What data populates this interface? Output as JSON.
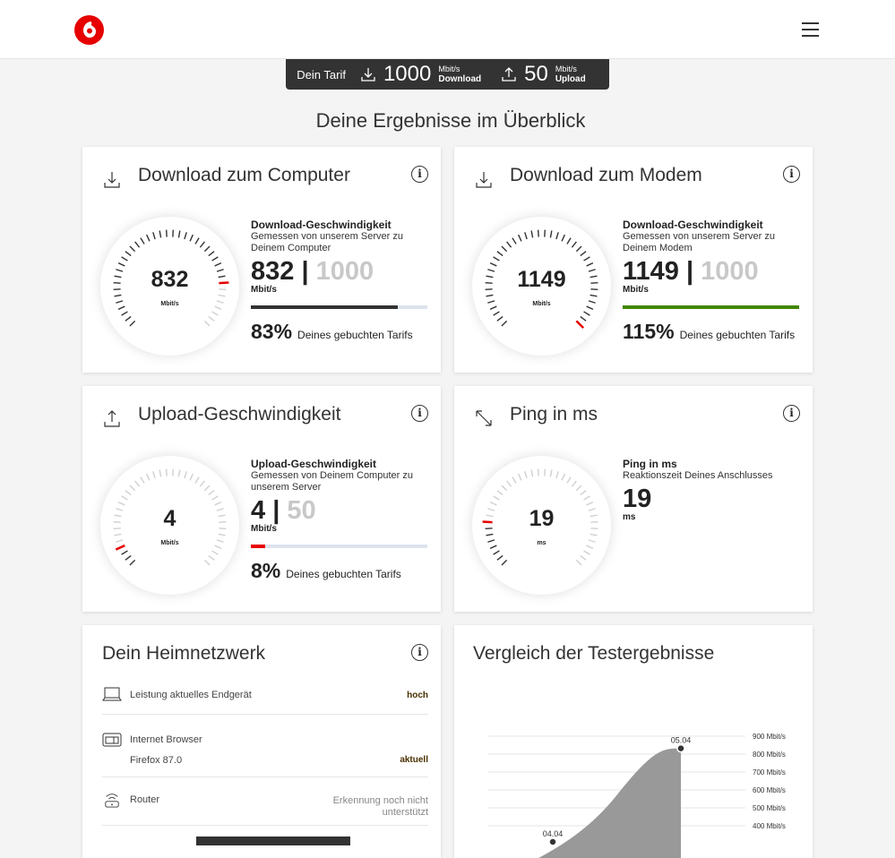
{
  "header": {
    "logo": "Vodafone",
    "menu_icon": "hamburger-icon"
  },
  "tarif": {
    "label": "Dein Tarif",
    "download_value": "1000",
    "download_unit": "Mbit/s",
    "download_label": "Download",
    "upload_value": "50",
    "upload_unit": "Mbit/s",
    "upload_label": "Upload"
  },
  "page_title": "Deine Ergebnisse im Überblick",
  "cards": [
    {
      "title": "Download zum Computer",
      "icon": "download-icon",
      "gauge_value": "832",
      "gauge_unit": "Mbit/s",
      "gauge_fraction": 0.83,
      "side_title": "Download-Geschwindigkeit",
      "side_desc": "Gemessen von unserem Server zu Deinem Computer",
      "value": "832",
      "max": "1000",
      "unit": "Mbit/s",
      "progress": 0.83,
      "bar_color": "#333333",
      "percent": "83%",
      "percent_label": "Deines gebuchten Tarifs"
    },
    {
      "title": "Download zum Modem",
      "icon": "download-icon",
      "gauge_value": "1149",
      "gauge_unit": "Mbit/s",
      "gauge_fraction": 1.0,
      "side_title": "Download-Geschwindigkeit",
      "side_desc": "Gemessen von unserem Server zu Deinem Modem",
      "value": "1149",
      "max": "1000",
      "unit": "Mbit/s",
      "progress": 1.0,
      "bar_color": "#428600",
      "percent": "115%",
      "percent_label": "Deines gebuchten Tarifs"
    },
    {
      "title": "Upload-Geschwindigkeit",
      "icon": "upload-icon",
      "gauge_value": "4",
      "gauge_unit": "Mbit/s",
      "gauge_fraction": 0.08,
      "side_title": "Upload-Geschwindigkeit",
      "side_desc": "Gemessen von Deinem Computer zu unserem Server",
      "value": "4",
      "max": "50",
      "unit": "Mbit/s",
      "progress": 0.08,
      "bar_color": "#e60000",
      "percent": "8%",
      "percent_label": "Deines gebuchten Tarifs"
    },
    {
      "title": "Ping in ms",
      "icon": "ping-icon",
      "gauge_value": "19",
      "gauge_unit": "ms",
      "gauge_fraction": 0.17,
      "side_title": "Ping in ms",
      "side_desc": "Reaktionszeit Deines Anschlusses",
      "value": "19",
      "unit": "ms"
    }
  ],
  "heimnetz": {
    "title": "Dein Heimnetzwerk",
    "rows": [
      {
        "icon": "laptop-icon",
        "label": "Leistung aktuelles Endgerät",
        "value": "hoch"
      },
      {
        "icon": "browser-icon",
        "label": "Internet Browser",
        "sub": "Firefox 87.0",
        "value": "aktuell"
      },
      {
        "icon": "router-icon",
        "label": "Router",
        "value": "Erkennung noch nicht unterstützt"
      }
    ]
  },
  "colors": {
    "accent": "#e60000",
    "dark": "#333333",
    "green": "#428600"
  },
  "chart_data": {
    "type": "area",
    "title": "Vergleich der Testergebnisse",
    "x": [
      "04.04",
      "05.04"
    ],
    "values": [
      310,
      832
    ],
    "y_ticks": [
      "900 Mbit/s",
      "800 Mbit/s",
      "700 Mbit/s",
      "600 Mbit/s",
      "500 Mbit/s",
      "400 Mbit/s"
    ],
    "grid": true
  }
}
